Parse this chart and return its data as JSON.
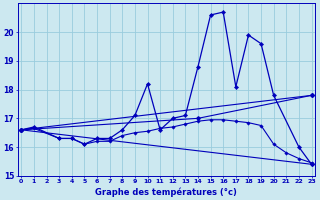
{
  "xlabel": "Graphe des températures (°c)",
  "background_color": "#cce8f0",
  "grid_color": "#99ccdd",
  "line_color": "#0000bb",
  "hours": [
    0,
    1,
    2,
    3,
    4,
    5,
    6,
    7,
    8,
    9,
    10,
    11,
    12,
    13,
    14,
    15,
    16,
    17,
    18,
    19,
    20,
    21,
    22,
    23
  ],
  "line_jagged": [
    16.6,
    16.7,
    null,
    16.3,
    16.3,
    16.1,
    16.3,
    16.3,
    16.6,
    17.1,
    18.2,
    16.6,
    17.0,
    17.1,
    18.8,
    20.6,
    20.7,
    18.1,
    19.9,
    19.6,
    17.8,
    null,
    16.0,
    15.4
  ],
  "line_lower": [
    16.6,
    16.65,
    null,
    16.3,
    16.3,
    16.1,
    16.2,
    16.2,
    16.4,
    16.5,
    16.55,
    16.65,
    16.7,
    16.8,
    16.9,
    16.95,
    16.95,
    16.9,
    16.85,
    16.75,
    16.1,
    15.8,
    15.6,
    15.45
  ],
  "line_diag1": [
    16.6,
    null,
    null,
    null,
    null,
    null,
    null,
    null,
    null,
    null,
    null,
    null,
    null,
    null,
    null,
    null,
    null,
    null,
    18.0,
    null,
    null,
    null,
    null,
    17.8
  ],
  "line_diag2": [
    16.6,
    null,
    null,
    null,
    null,
    null,
    null,
    null,
    null,
    null,
    null,
    null,
    null,
    null,
    17.0,
    null,
    null,
    null,
    null,
    null,
    null,
    null,
    null,
    17.8
  ],
  "line_diag3": [
    16.6,
    null,
    null,
    null,
    null,
    null,
    null,
    null,
    null,
    null,
    null,
    null,
    null,
    null,
    null,
    null,
    null,
    null,
    null,
    null,
    null,
    null,
    null,
    15.4
  ],
  "ylim": [
    15.0,
    21.0
  ],
  "yticks": [
    15,
    16,
    17,
    18,
    19,
    20
  ],
  "xlim": [
    0,
    23
  ]
}
